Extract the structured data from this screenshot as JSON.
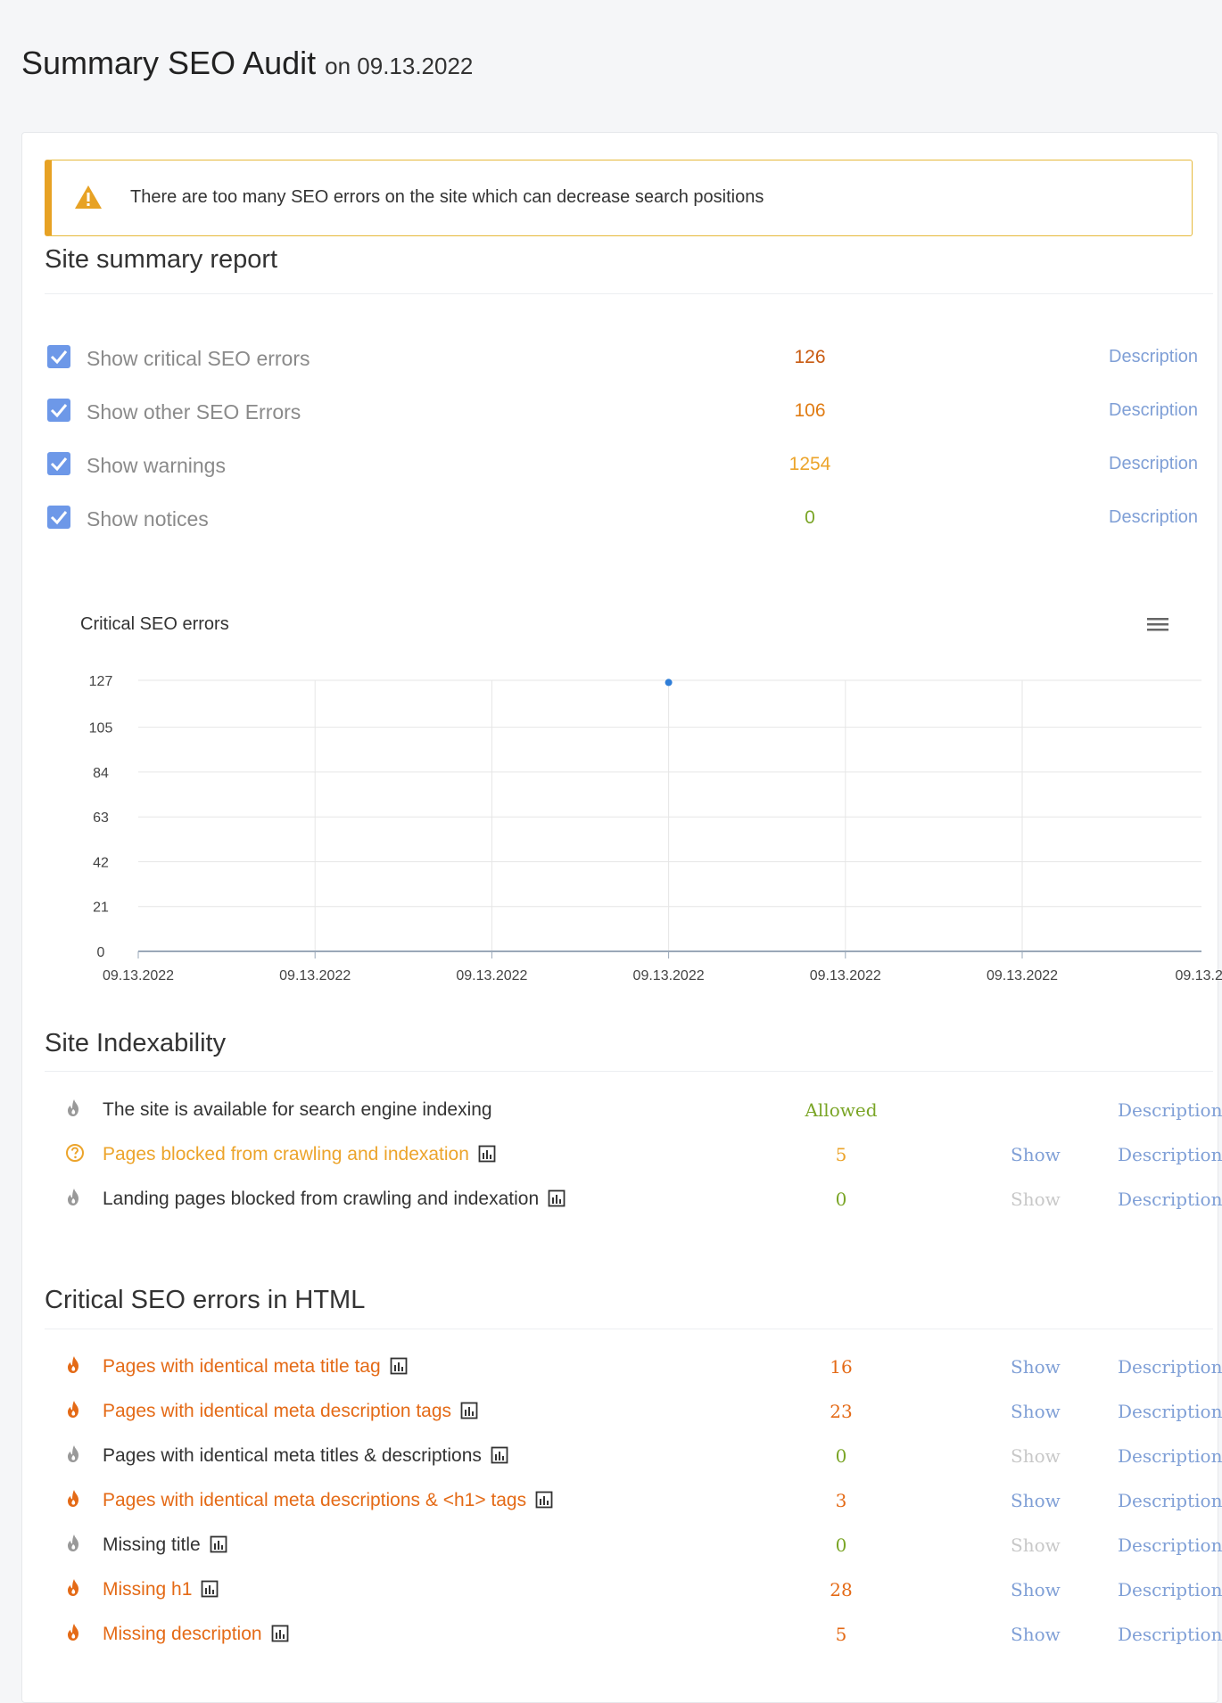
{
  "header": {
    "title": "Summary SEO Audit",
    "date": "on 09.13.2022"
  },
  "alert": {
    "text": "There are too many SEO errors on the site which can decrease search positions"
  },
  "summary": {
    "title": "Site summary report",
    "rows": [
      {
        "label": "Show critical SEO errors",
        "value": "126",
        "color": "#c85a10",
        "description": "Description",
        "checked": true
      },
      {
        "label": "Show other SEO Errors",
        "value": "106",
        "color": "#e07b12",
        "description": "Description",
        "checked": true
      },
      {
        "label": "Show warnings",
        "value": "1254",
        "color": "#eca42b",
        "description": "Description",
        "checked": true
      },
      {
        "label": "Show notices",
        "value": "0",
        "color": "#7aa526",
        "description": "Description",
        "checked": true
      }
    ]
  },
  "chart_data": {
    "type": "scatter",
    "title": "Critical SEO errors",
    "categories": [
      "09.13.2022",
      "09.13.2022",
      "09.13.2022",
      "09.13.2022",
      "09.13.2022",
      "09.13.2022",
      "09.13.2"
    ],
    "y_ticks": [
      "127",
      "105",
      "84",
      "63",
      "42",
      "21",
      "0"
    ],
    "ylim": [
      0,
      127
    ],
    "series": [
      {
        "points": [
          {
            "x_index": 3,
            "y": 126
          }
        ]
      }
    ],
    "grid": true,
    "point_color": "#2f7ed8"
  },
  "indexability": {
    "title": "Site Indexability",
    "rows": [
      {
        "label": "The site is available for search engine indexing",
        "value": "Allowed",
        "value_class": "c-green",
        "label_class": "c-dark",
        "icon": "fire-icon",
        "icon_color": "#999",
        "has_chart": false,
        "show": "",
        "show_state": "none",
        "description": "Description"
      },
      {
        "label": "Pages blocked from crawling and indexation",
        "value": "5",
        "value_class": "c-amber",
        "label_class": "c-amber",
        "icon": "question-icon",
        "icon_color": "#eca42b",
        "has_chart": true,
        "show": "Show",
        "show_state": "active",
        "description": "Description"
      },
      {
        "label": "Landing pages blocked from crawling and indexation",
        "value": "0",
        "value_class": "c-green",
        "label_class": "c-dark",
        "icon": "fire-icon",
        "icon_color": "#999",
        "has_chart": true,
        "show": "Show",
        "show_state": "disabled",
        "description": "Description"
      }
    ]
  },
  "critical_html": {
    "title": "Critical SEO errors in HTML",
    "rows": [
      {
        "label": "Pages with identical meta title tag",
        "value": "16",
        "value_class": "c-orange",
        "label_class": "c-orange",
        "icon": "fire-icon",
        "icon_color": "#e46a16",
        "has_chart": true,
        "show": "Show",
        "show_state": "active",
        "description": "Description"
      },
      {
        "label": "Pages with identical meta description tags",
        "value": "23",
        "value_class": "c-orange",
        "label_class": "c-orange",
        "icon": "fire-icon",
        "icon_color": "#e46a16",
        "has_chart": true,
        "show": "Show",
        "show_state": "active",
        "description": "Description"
      },
      {
        "label": "Pages with identical meta titles & descriptions",
        "value": "0",
        "value_class": "c-green",
        "label_class": "c-dark",
        "icon": "fire-icon",
        "icon_color": "#999",
        "has_chart": true,
        "show": "Show",
        "show_state": "disabled",
        "description": "Description"
      },
      {
        "label": "Pages with identical meta descriptions & <h1> tags",
        "value": "3",
        "value_class": "c-orange",
        "label_class": "c-orange",
        "icon": "fire-icon",
        "icon_color": "#e46a16",
        "has_chart": true,
        "show": "Show",
        "show_state": "active",
        "description": "Description"
      },
      {
        "label": "Missing title",
        "value": "0",
        "value_class": "c-green",
        "label_class": "c-dark",
        "icon": "fire-icon",
        "icon_color": "#999",
        "has_chart": true,
        "show": "Show",
        "show_state": "disabled",
        "description": "Description"
      },
      {
        "label": "Missing h1",
        "value": "28",
        "value_class": "c-orange",
        "label_class": "c-orange",
        "icon": "fire-icon",
        "icon_color": "#e46a16",
        "has_chart": true,
        "show": "Show",
        "show_state": "active",
        "description": "Description"
      },
      {
        "label": "Missing description",
        "value": "5",
        "value_class": "c-orange",
        "label_class": "c-orange",
        "icon": "fire-icon",
        "icon_color": "#e46a16",
        "has_chart": true,
        "show": "Show",
        "show_state": "active",
        "description": "Description"
      }
    ]
  }
}
